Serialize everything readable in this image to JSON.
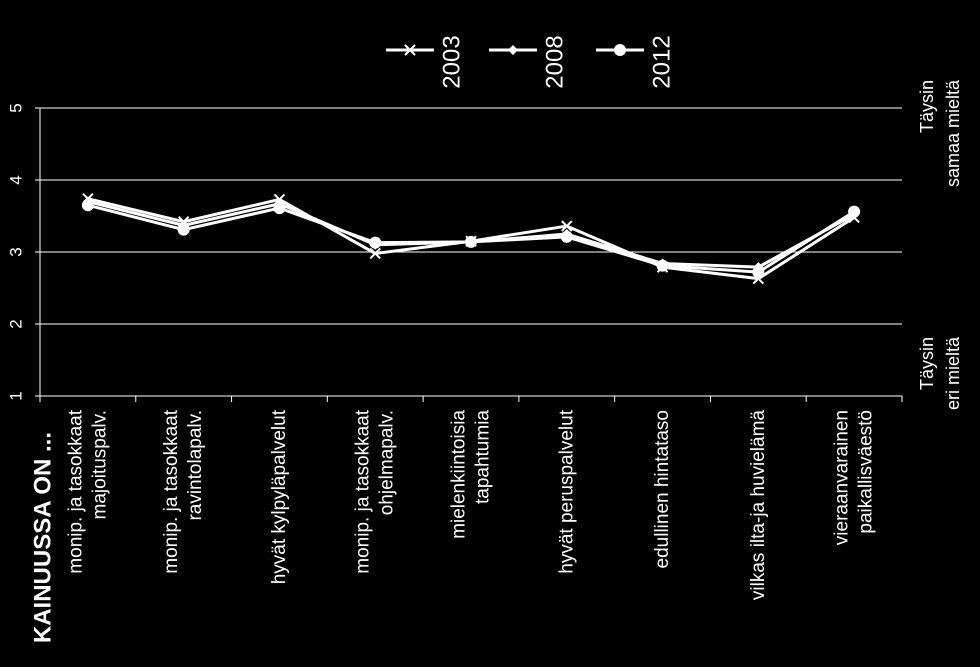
{
  "chart_data": {
    "type": "line",
    "categories": [
      [
        "monip. ja tasokkaat",
        "majoituspalv."
      ],
      [
        "monip. ja tasokkaat",
        "ravintolapalv."
      ],
      [
        "hyvät kylpyläpalvelut"
      ],
      [
        "monip. ja tasokkaat",
        "ohjelmapalv."
      ],
      [
        "mielenkiintoisia",
        "tapahtumia"
      ],
      [
        "hyvät peruspalvelut"
      ],
      [
        "edullinen hintataso"
      ],
      [
        "vilkas ilta-ja huvielämä"
      ],
      [
        "vieraanvarainen",
        "paikallisväestö"
      ]
    ],
    "series": [
      {
        "name": "2003",
        "marker": "x",
        "values": [
          3.74,
          3.42,
          3.73,
          2.98,
          3.15,
          3.36,
          2.79,
          2.63,
          3.48
        ]
      },
      {
        "name": "2008",
        "marker": "diamond",
        "values": [
          3.7,
          3.37,
          3.67,
          3.1,
          3.14,
          3.25,
          2.84,
          2.79,
          3.52
        ]
      },
      {
        "name": "2012",
        "marker": "circle",
        "values": [
          3.65,
          3.31,
          3.61,
          3.13,
          3.14,
          3.21,
          2.81,
          2.72,
          3.56
        ]
      }
    ],
    "yticks": [
      1,
      2,
      3,
      4,
      5
    ],
    "ylim": [
      1,
      5
    ],
    "category_axis_title": "KAINUUSSA ON ...",
    "scale_top_label": [
      "Täysin",
      "samaa mieltä"
    ],
    "scale_bottom_label": [
      "Täysin",
      "eri mieltä"
    ],
    "grid": true,
    "legend_position": "top",
    "colors": {
      "background": "#000000",
      "line": "#ffffff",
      "grid": "#ffffff"
    }
  }
}
